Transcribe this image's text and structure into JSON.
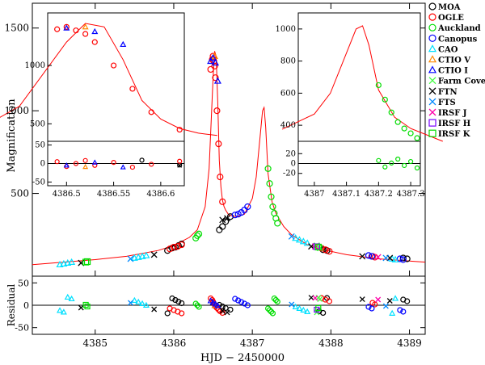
{
  "chart_data": {
    "type": "scatter",
    "xlabel": "HJD − 2450000",
    "ylabel_main": "Magnification",
    "ylabel_resid": "Residual",
    "main": {
      "xlim": [
        4384.2,
        4389.2
      ],
      "ylim": [
        0,
        1650
      ],
      "xticks": [
        "4385",
        "4386",
        "4387",
        "4388",
        "4389"
      ],
      "yticks": [
        "500",
        "1000",
        "1500"
      ],
      "model_curve": {
        "x": [
          4384.2,
          4384.6,
          4385.0,
          4385.4,
          4385.8,
          4386.0,
          4386.2,
          4386.3,
          4386.4,
          4386.45,
          4386.5,
          4386.52,
          4386.54,
          4386.56,
          4386.58,
          4386.6,
          4386.62,
          4386.64,
          4386.66,
          4386.7,
          4386.8,
          4386.9,
          4387.0,
          4387.05,
          4387.1,
          4387.13,
          4387.15,
          4387.17,
          4387.2,
          4387.25,
          4387.3,
          4387.4,
          4387.5,
          4387.7,
          4387.9,
          4388.2,
          4388.6,
          4389.2
        ],
        "y": [
          70,
          85,
          100,
          120,
          155,
          185,
          235,
          280,
          420,
          650,
          1200,
          1360,
          1330,
          1050,
          700,
          540,
          460,
          420,
          400,
          370,
          360,
          375,
          470,
          600,
          850,
          1000,
          1020,
          900,
          620,
          450,
          380,
          300,
          250,
          190,
          160,
          130,
          105,
          85
        ]
      },
      "datasets": [
        {
          "name": "MOA",
          "color": "#000000",
          "marker": "circle",
          "x": [
            4385.92,
            4385.98,
            4386.02,
            4386.06,
            4386.1,
            4386.58,
            4386.62,
            4386.66,
            4386.72,
            4387.85,
            4387.9,
            4387.95,
            4388.92,
            4388.97
          ],
          "y": [
            155,
            170,
            175,
            185,
            195,
            280,
            300,
            330,
            360,
            175,
            160,
            155,
            110,
            105
          ]
        },
        {
          "name": "OGLE",
          "color": "#ff0000",
          "marker": "circle",
          "x": [
            4385.95,
            4386.0,
            4386.05,
            4386.1,
            4386.47,
            4386.49,
            4386.5,
            4386.51,
            4386.52,
            4386.53,
            4386.55,
            4386.57,
            4386.59,
            4386.62,
            4387.88,
            4387.93,
            4387.98,
            4388.53,
            4388.56
          ],
          "y": [
            165,
            175,
            180,
            190,
            1250,
            1310,
            1330,
            1300,
            1270,
            1200,
            1000,
            800,
            600,
            450,
            170,
            160,
            150,
            120,
            115
          ]
        },
        {
          "name": "Auckland",
          "color": "#00dd00",
          "marker": "circle",
          "x": [
            4386.28,
            4386.3,
            4386.32,
            4387.2,
            4387.22,
            4387.24,
            4387.26,
            4387.28,
            4387.3,
            4387.32
          ],
          "y": [
            230,
            245,
            255,
            650,
            560,
            480,
            420,
            380,
            350,
            320
          ]
        },
        {
          "name": "Canopus",
          "color": "#0000ff",
          "marker": "circle",
          "x": [
            4386.78,
            4386.82,
            4386.86,
            4386.9,
            4386.94,
            4388.48,
            4388.52,
            4388.88,
            4388.92
          ],
          "y": [
            370,
            375,
            385,
            400,
            420,
            125,
            120,
            105,
            100
          ]
        },
        {
          "name": "CAO",
          "color": "#00e0ff",
          "marker": "triangle",
          "x": [
            4384.55,
            4384.6,
            4384.65,
            4384.7,
            4385.5,
            4385.55,
            4385.6,
            4385.65,
            4387.55,
            4387.6,
            4387.65,
            4387.7,
            4388.78,
            4388.82
          ],
          "y": [
            70,
            75,
            80,
            85,
            110,
            115,
            120,
            125,
            230,
            220,
            210,
            200,
            105,
            100
          ]
        },
        {
          "name": "CTIO V",
          "color": "#ff8800",
          "marker": "triangle",
          "x": [
            4386.52
          ],
          "y": [
            1330
          ]
        },
        {
          "name": "CTIO I",
          "color": "#0000ff",
          "marker": "triangle",
          "x": [
            4386.47,
            4386.5,
            4386.53,
            4386.56
          ],
          "y": [
            1300,
            1320,
            1290,
            1180
          ]
        },
        {
          "name": "Farm Cove",
          "color": "#44ff44",
          "marker": "x",
          "x": [
            4387.82,
            4387.84,
            4387.86
          ],
          "y": [
            185,
            175,
            170
          ]
        },
        {
          "name": "FTN",
          "color": "#000000",
          "marker": "x",
          "x": [
            4384.82,
            4385.75,
            4386.62,
            4386.68,
            4387.75,
            4388.4,
            4388.75
          ],
          "y": [
            80,
            130,
            340,
            350,
            180,
            120,
            110
          ]
        },
        {
          "name": "FTS",
          "color": "#0088ff",
          "marker": "x",
          "x": [
            4385.45,
            4387.5,
            4388.7
          ],
          "y": [
            105,
            240,
            110
          ]
        },
        {
          "name": "IRSF J",
          "color": "#ff00aa",
          "marker": "x",
          "x": [
            4387.8,
            4388.6
          ],
          "y": [
            180,
            115
          ]
        },
        {
          "name": "IRSF H",
          "color": "#7700ff",
          "marker": "square",
          "x": [
            4387.82
          ],
          "y": [
            178
          ]
        },
        {
          "name": "IRSF K",
          "color": "#00dd00",
          "marker": "square",
          "x": [
            4384.88,
            4384.9,
            4387.84
          ],
          "y": [
            85,
            88,
            176
          ]
        }
      ]
    },
    "residual": {
      "ylim": [
        -65,
        65
      ],
      "yticks": [
        "-50",
        "0",
        "50"
      ]
    },
    "inset_left": {
      "xlim": [
        4386.48,
        4386.625
      ],
      "ylim_top": [
        350,
        1450
      ],
      "ylim_bottom": [
        -60,
        60
      ],
      "xticks": [
        "4386.5",
        "4386.55",
        "4386.6"
      ],
      "yticks_top": [
        "500",
        "1000",
        "1500"
      ],
      "yticks_bottom": [
        "-50",
        "0",
        "50"
      ]
    },
    "inset_right": {
      "xlim": [
        4386.95,
        4387.33
      ],
      "ylim_top": [
        300,
        1100
      ],
      "ylim_bottom": [
        -45,
        45
      ],
      "xticks": [
        "4387",
        "4387.1",
        "4387.2",
        "4387.3"
      ],
      "yticks_top": [
        "400",
        "600",
        "800",
        "1000"
      ],
      "yticks_bottom": [
        "-20",
        "0",
        "20"
      ]
    }
  },
  "legend": [
    {
      "label": "MOA",
      "color": "#000000",
      "marker": "circle"
    },
    {
      "label": "OGLE",
      "color": "#ff0000",
      "marker": "circle"
    },
    {
      "label": "Auckland",
      "color": "#00dd00",
      "marker": "circle"
    },
    {
      "label": "Canopus",
      "color": "#0000ff",
      "marker": "circle"
    },
    {
      "label": "CAO",
      "color": "#00e0ff",
      "marker": "triangle"
    },
    {
      "label": "CTIO V",
      "color": "#ff8800",
      "marker": "triangle"
    },
    {
      "label": "CTIO I",
      "color": "#0000ff",
      "marker": "triangle"
    },
    {
      "label": "Farm Cove",
      "color": "#44ff44",
      "marker": "x"
    },
    {
      "label": "FTN",
      "color": "#000000",
      "marker": "x"
    },
    {
      "label": "FTS",
      "color": "#0088ff",
      "marker": "x"
    },
    {
      "label": "IRSF J",
      "color": "#ff00aa",
      "marker": "x"
    },
    {
      "label": "IRSF H",
      "color": "#7700ff",
      "marker": "square"
    },
    {
      "label": "IRSF K",
      "color": "#00dd00",
      "marker": "square"
    }
  ]
}
